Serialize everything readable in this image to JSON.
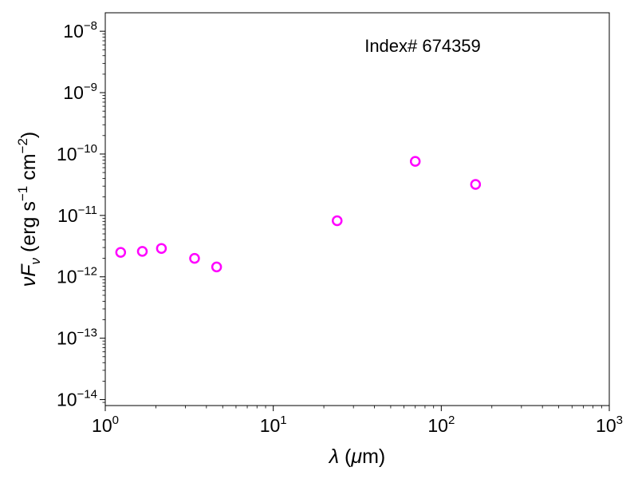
{
  "chart_data": {
    "type": "scatter",
    "xscale": "log",
    "yscale": "log",
    "xlim": [
      1,
      1000
    ],
    "ylim": [
      8e-15,
      2e-08
    ],
    "xlabel": {
      "symbol": "λ",
      "unit_open": " (",
      "mu": "μ",
      "unit_rest": "m)"
    },
    "ylabel": {
      "nu": "ν",
      "F": "F",
      "sub": "ν",
      "open": " (erg s",
      "exp1": "−1",
      "mid": " cm",
      "exp2": "−2",
      "close": ")"
    },
    "x_ticks": [
      {
        "value": 1,
        "base": "10",
        "exp": "0"
      },
      {
        "value": 10,
        "base": "10",
        "exp": "1"
      },
      {
        "value": 100,
        "base": "10",
        "exp": "2"
      },
      {
        "value": 1000,
        "base": "10",
        "exp": "3"
      }
    ],
    "y_ticks": [
      {
        "value": 1e-14,
        "base": "10",
        "exp": "−14"
      },
      {
        "value": 1e-13,
        "base": "10",
        "exp": "−13"
      },
      {
        "value": 1e-12,
        "base": "10",
        "exp": "−12"
      },
      {
        "value": 1e-11,
        "base": "10",
        "exp": "−11"
      },
      {
        "value": 1e-10,
        "base": "10",
        "exp": "−10"
      },
      {
        "value": 1e-09,
        "base": "10",
        "exp": "−9"
      },
      {
        "value": 1e-08,
        "base": "10",
        "exp": "−8"
      }
    ],
    "annotation": "Index# 674359",
    "marker": {
      "shape": "open-circle",
      "color": "#ff00ff"
    },
    "points": [
      {
        "x": 1.235,
        "y": 2.5e-12
      },
      {
        "x": 1.662,
        "y": 2.6e-12
      },
      {
        "x": 2.159,
        "y": 2.9e-12
      },
      {
        "x": 3.4,
        "y": 2e-12
      },
      {
        "x": 4.6,
        "y": 1.45e-12
      },
      {
        "x": 24,
        "y": 8.2e-12
      },
      {
        "x": 70,
        "y": 7.6e-11
      },
      {
        "x": 160,
        "y": 3.2e-11
      }
    ]
  }
}
